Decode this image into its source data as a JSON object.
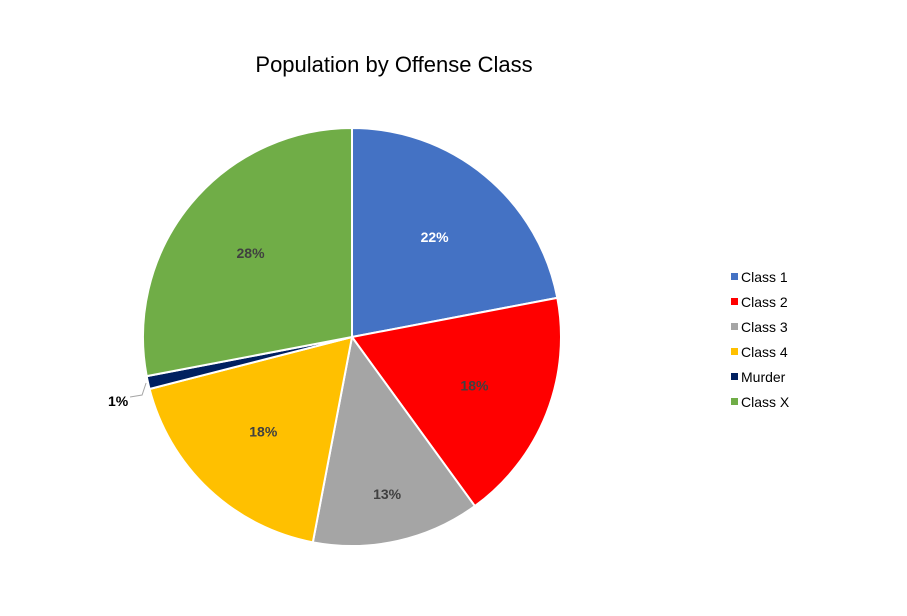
{
  "chart_data": {
    "type": "pie",
    "title": "Population by Offense Class",
    "slices": [
      {
        "name": "Class 1",
        "value": 22,
        "label": "22%",
        "color": "#4472C4",
        "label_color": "#FFFFFF"
      },
      {
        "name": "Class 2",
        "value": 18,
        "label": "18%",
        "color": "#FF0000",
        "label_color": "#404040"
      },
      {
        "name": "Class 3",
        "value": 13,
        "label": "13%",
        "color": "#A5A5A5",
        "label_color": "#404040"
      },
      {
        "name": "Class 4",
        "value": 18,
        "label": "18%",
        "color": "#FFC000",
        "label_color": "#404040"
      },
      {
        "name": "Murder",
        "value": 1,
        "label": "1%",
        "color": "#002060",
        "label_color": "#000000"
      },
      {
        "name": "Class X",
        "value": 28,
        "label": "28%",
        "color": "#70AD47",
        "label_color": "#404040"
      }
    ],
    "start_angle": "12 o'clock",
    "direction": "clockwise",
    "legend_position": "right"
  }
}
